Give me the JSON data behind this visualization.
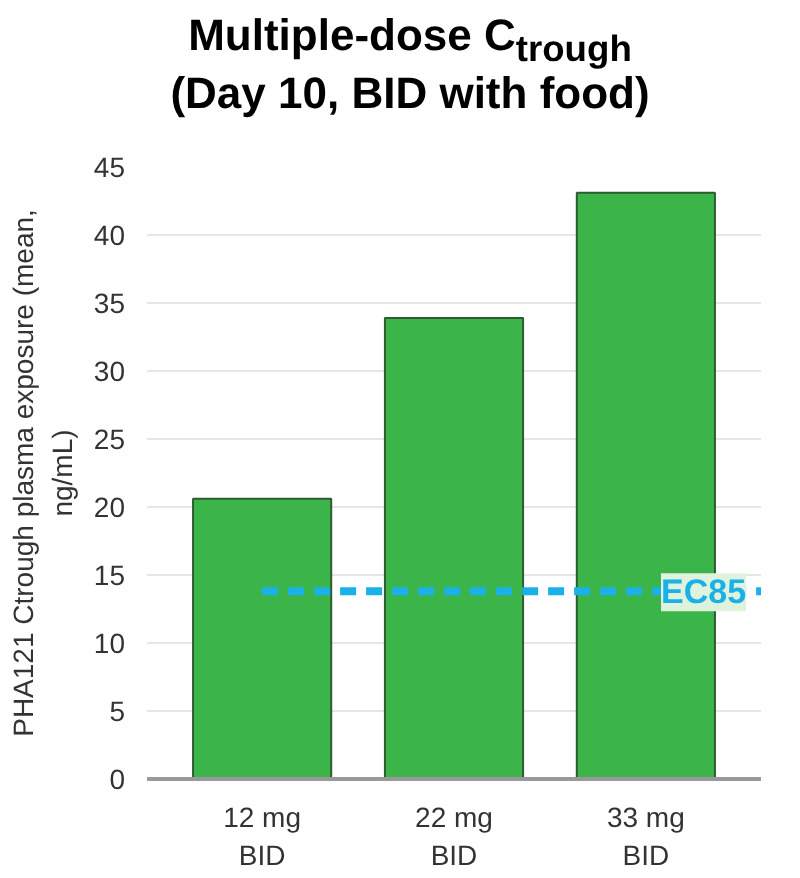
{
  "chart_data": {
    "type": "bar",
    "title": "Multiple-dose C$_{trough}$\n(Day 10, BID with food)",
    "ylabel": "PHA121 Ctrough plasma exposure (mean,\nng/mL)",
    "categories": [
      "12 mg\nBID",
      "22 mg\nBID",
      "33 mg\nBID"
    ],
    "values": [
      20.6,
      33.9,
      43.1
    ],
    "color": "#3bb54a",
    "ylim": [
      0,
      45
    ],
    "yticks": [
      0,
      5,
      10,
      15,
      20,
      25,
      30,
      35,
      40,
      45
    ],
    "grid": "y",
    "ref_lines": [
      {
        "axis": "y",
        "value": 13.8,
        "label": "EC85",
        "color": "#1ab0e8",
        "line_style": "dashed"
      }
    ]
  }
}
